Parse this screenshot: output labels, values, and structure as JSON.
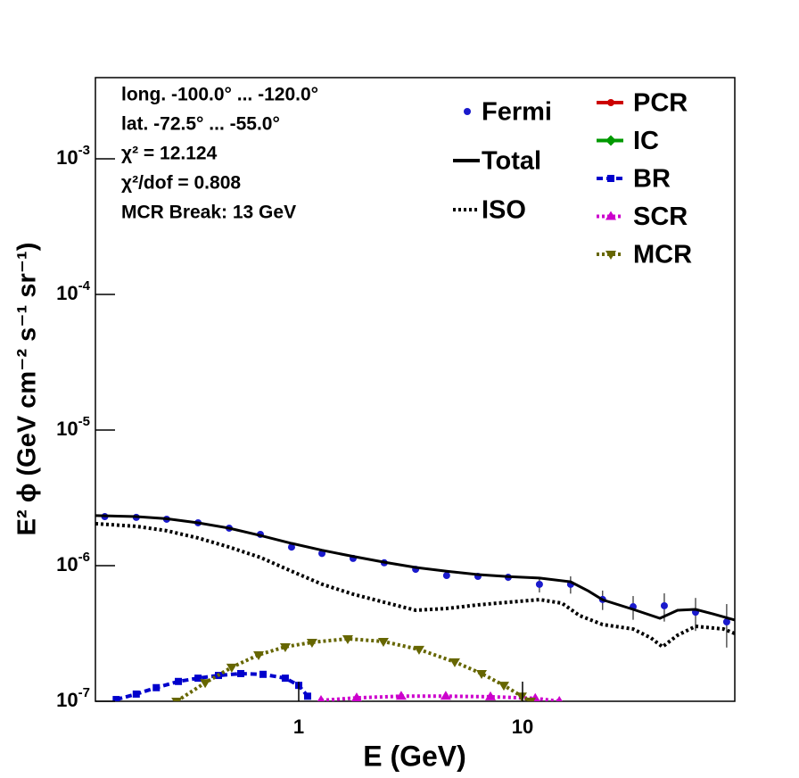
{
  "chart_data": {
    "type": "line",
    "log_x": true,
    "log_y": true,
    "x_label": "E (GeV)",
    "y_label": "E² ϕ (GeV cm⁻² s⁻¹ sr⁻¹)",
    "xlim": [
      0.1235,
      88.8
    ],
    "ylim": [
      1e-07,
      0.00397
    ],
    "xticks": [
      1,
      10
    ],
    "yticks": [
      {
        "value": 1e-07,
        "label": "10-7"
      },
      {
        "value": 1e-06,
        "label": "10-6"
      },
      {
        "value": 1e-05,
        "label": "10-5"
      },
      {
        "value": 0.0001,
        "label": "10-4"
      },
      {
        "value": 0.001,
        "label": "10-3"
      }
    ],
    "annotations": [
      "long. -100.0° ... -120.0°",
      "lat. -72.5° ... -55.0°",
      "χ² = 12.124",
      "χ²/dof = 0.808",
      "MCR Break: 13 GeV"
    ],
    "series": [
      {
        "name": "Fermi",
        "color": "#1a1acc",
        "style": "points",
        "marker": "circle",
        "x": [
          0.136,
          0.188,
          0.257,
          0.355,
          0.489,
          0.674,
          0.929,
          1.27,
          1.75,
          2.41,
          3.33,
          4.58,
          6.32,
          8.63,
          11.9,
          16.4,
          22.8,
          31.2,
          43.0,
          59.3,
          81.7
        ],
        "values": [
          2.3e-06,
          2.27e-06,
          2.2e-06,
          2.07e-06,
          1.89e-06,
          1.7e-06,
          1.37e-06,
          1.23e-06,
          1.13e-06,
          1.05e-06,
          9.4e-07,
          8.46e-07,
          8.34e-07,
          8.21e-07,
          7.28e-07,
          7.28e-07,
          5.63e-07,
          4.98e-07,
          5.06e-07,
          4.54e-07,
          3.85e-07
        ],
        "errors": [
          6e-08,
          6e-08,
          6e-08,
          6e-08,
          5e-08,
          5e-08,
          4e-08,
          4e-08,
          4e-08,
          4e-08,
          4e-08,
          4e-08,
          4e-08,
          5e-08,
          9.4e-08,
          1.06e-07,
          9.2e-08,
          9.9e-08,
          1.19e-07,
          1.24e-07,
          1.36e-07
        ]
      },
      {
        "name": "Total",
        "color": "#000000",
        "style": "solid",
        "marker": "none",
        "x": [
          0.1235,
          0.188,
          0.257,
          0.355,
          0.489,
          0.674,
          0.929,
          1.27,
          1.75,
          2.41,
          3.33,
          4.58,
          6.32,
          8.63,
          11.9,
          16.4,
          19.7,
          22.8,
          31.2,
          41.1,
          49.3,
          59.3,
          71.2,
          88.8
        ],
        "values": [
          2.34e-06,
          2.3e-06,
          2.22e-06,
          2.07e-06,
          1.89e-06,
          1.67e-06,
          1.46e-06,
          1.3e-06,
          1.17e-06,
          1.06e-06,
          9.7e-07,
          9.1e-07,
          8.6e-07,
          8.3e-07,
          8.1e-07,
          7.6e-07,
          6.5e-07,
          5.6e-07,
          4.76e-07,
          4.09e-07,
          4.69e-07,
          4.76e-07,
          4.4e-07,
          3.97e-07
        ]
      },
      {
        "name": "ISO",
        "color": "#000000",
        "style": "dotted",
        "marker": "none",
        "x": [
          0.1235,
          0.188,
          0.257,
          0.355,
          0.489,
          0.674,
          0.929,
          1.27,
          1.75,
          2.41,
          3.33,
          4.58,
          6.32,
          8.63,
          11.9,
          15.0,
          18.0,
          22.8,
          31.2,
          37.5,
          42.2,
          49.3,
          59.3,
          79.1,
          88.8
        ],
        "values": [
          2.04e-06,
          1.95e-06,
          1.81e-06,
          1.6e-06,
          1.37e-06,
          1.15e-06,
          9.1e-07,
          7.3e-07,
          6.16e-07,
          5.37e-07,
          4.69e-07,
          4.83e-07,
          5.14e-07,
          5.37e-07,
          5.62e-07,
          5.29e-07,
          4.28e-07,
          3.68e-07,
          3.41e-07,
          2.93e-07,
          2.52e-07,
          3.07e-07,
          3.57e-07,
          3.41e-07,
          3.16e-07
        ]
      },
      {
        "name": "PCR",
        "color": "#cc0000",
        "style": "solid",
        "marker": "circle",
        "x": [],
        "values": []
      },
      {
        "name": "IC",
        "color": "#009900",
        "style": "solid",
        "marker": "diamond",
        "x": [],
        "values": []
      },
      {
        "name": "BR",
        "color": "#0000cc",
        "style": "dashed",
        "marker": "square",
        "x": [
          0.153,
          0.188,
          0.231,
          0.29,
          0.355,
          0.438,
          0.551,
          0.693,
          0.871,
          1.0,
          1.096
        ],
        "values": [
          1.03e-07,
          1.13e-07,
          1.26e-07,
          1.4e-07,
          1.48e-07,
          1.55e-07,
          1.6e-07,
          1.58e-07,
          1.48e-07,
          1.31e-07,
          1.09e-07
        ]
      },
      {
        "name": "SCR",
        "color": "#cc00cc",
        "style": "dotted",
        "marker": "triangle-up",
        "x": [
          1.258,
          1.815,
          2.87,
          4.54,
          7.19,
          11.4,
          14.6
        ],
        "values": [
          1.015e-07,
          1.06e-07,
          1.09e-07,
          1.09e-07,
          1.08e-07,
          1.05e-07,
          1e-07
        ]
      },
      {
        "name": "MCR",
        "color": "#666600",
        "style": "dotted",
        "marker": "triangle-down",
        "x": [
          0.285,
          0.382,
          0.502,
          0.662,
          0.871,
          1.147,
          1.656,
          2.39,
          3.45,
          4.98,
          6.56,
          8.25,
          9.91,
          10.86
        ],
        "values": [
          1e-07,
          1.37e-07,
          1.78e-07,
          2.2e-07,
          2.52e-07,
          2.72e-07,
          2.89e-07,
          2.76e-07,
          2.41e-07,
          1.95e-07,
          1.6e-07,
          1.31e-07,
          1.09e-07,
          1e-07
        ]
      }
    ]
  }
}
